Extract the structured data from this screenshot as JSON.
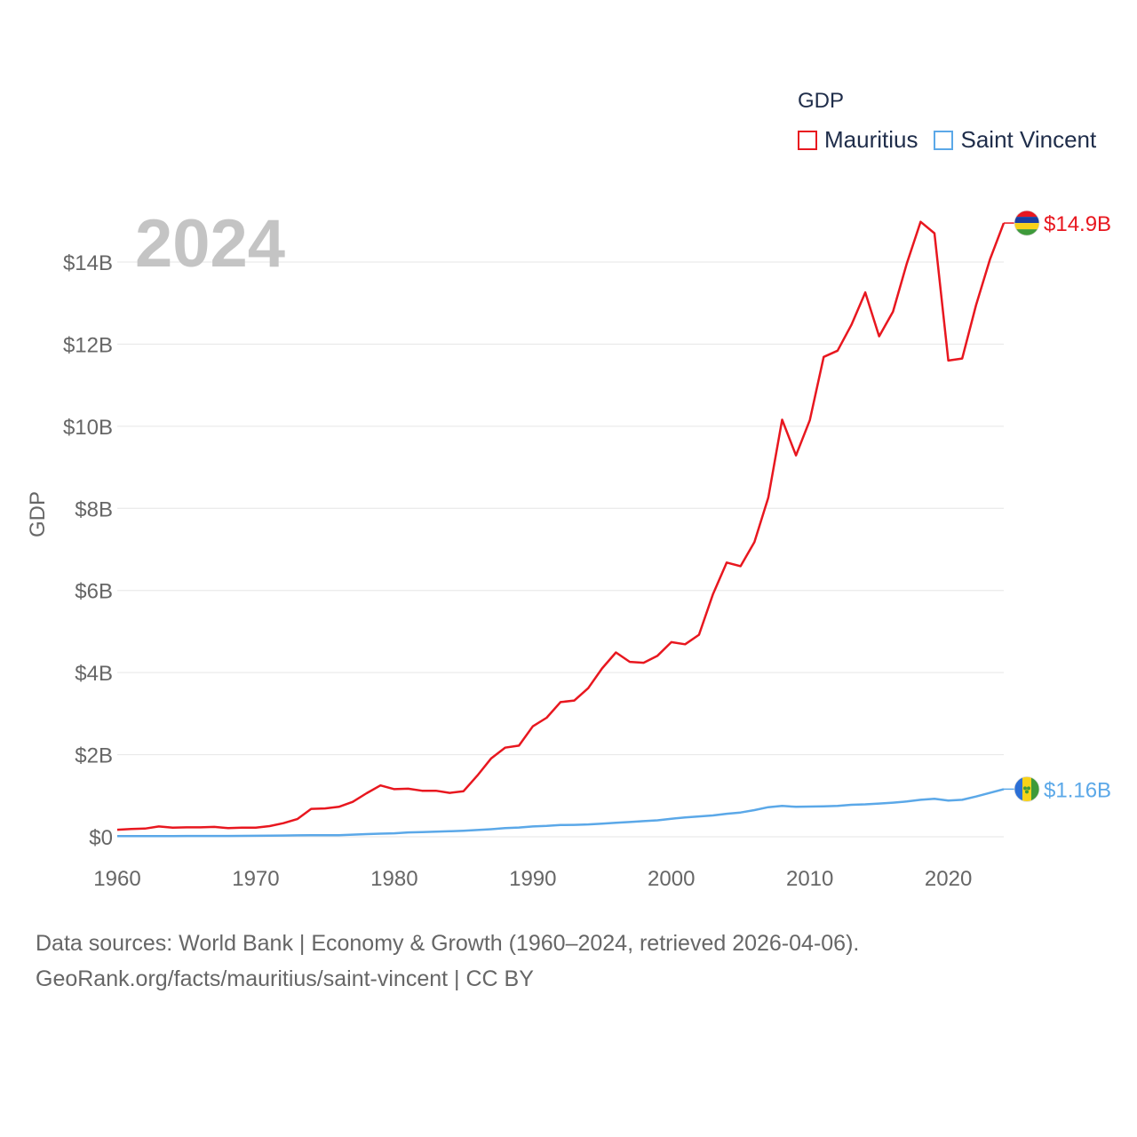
{
  "chart_data": {
    "type": "line",
    "title": "GDP",
    "ylabel": "GDP",
    "xlabel": "",
    "year_label": "2024",
    "xlim": [
      1960,
      2024
    ],
    "ylim": [
      0,
      15500000000
    ],
    "x_ticks": [
      1960,
      1970,
      1980,
      1990,
      2000,
      2010,
      2020
    ],
    "x_tick_labels": [
      "1960",
      "1970",
      "1980",
      "1990",
      "2000",
      "2010",
      "2020"
    ],
    "y_ticks": [
      0,
      2000000000,
      4000000000,
      6000000000,
      8000000000,
      10000000000,
      12000000000,
      14000000000
    ],
    "y_tick_labels": [
      "$0",
      "$2B",
      "$4B",
      "$6B",
      "$8B",
      "$10B",
      "$12B",
      "$14B"
    ],
    "grid": true,
    "legend_position": "top-right",
    "x": [
      1960,
      1961,
      1962,
      1963,
      1964,
      1965,
      1966,
      1967,
      1968,
      1969,
      1970,
      1971,
      1972,
      1973,
      1974,
      1975,
      1976,
      1977,
      1978,
      1979,
      1980,
      1981,
      1982,
      1983,
      1984,
      1985,
      1986,
      1987,
      1988,
      1989,
      1990,
      1991,
      1992,
      1993,
      1994,
      1995,
      1996,
      1997,
      1998,
      1999,
      2000,
      2001,
      2002,
      2003,
      2004,
      2005,
      2006,
      2007,
      2008,
      2009,
      2010,
      2011,
      2012,
      2013,
      2014,
      2015,
      2016,
      2017,
      2018,
      2019,
      2020,
      2021,
      2022,
      2023,
      2024
    ],
    "series": [
      {
        "name": "Mauritius",
        "color": "#e8171f",
        "end_label": "$14.9B",
        "flag": "mauritius-flag",
        "values": [
          170000000,
          190000000,
          200000000,
          250000000,
          220000000,
          230000000,
          230000000,
          240000000,
          210000000,
          220000000,
          220000000,
          260000000,
          330000000,
          430000000,
          680000000,
          690000000,
          730000000,
          850000000,
          1060000000,
          1250000000,
          1160000000,
          1170000000,
          1120000000,
          1120000000,
          1070000000,
          1110000000,
          1490000000,
          1910000000,
          2170000000,
          2220000000,
          2690000000,
          2900000000,
          3280000000,
          3320000000,
          3620000000,
          4100000000,
          4490000000,
          4260000000,
          4240000000,
          4410000000,
          4740000000,
          4690000000,
          4920000000,
          5900000000,
          6680000000,
          6590000000,
          7180000000,
          8260000000,
          10160000000,
          9290000000,
          10150000000,
          11690000000,
          11840000000,
          12470000000,
          13260000000,
          12190000000,
          12790000000,
          13960000000,
          14980000000,
          14700000000,
          11600000000,
          11650000000,
          12950000000,
          14060000000,
          14950000000
        ]
      },
      {
        "name": "Saint Vincent",
        "color": "#5ba8e8",
        "end_label": "$1.16B",
        "flag": "saint-vincent-flag",
        "values": [
          15000000,
          15000000,
          16000000,
          17000000,
          18000000,
          19000000,
          19000000,
          20000000,
          20000000,
          21000000,
          23000000,
          26000000,
          31000000,
          35000000,
          39000000,
          38000000,
          40000000,
          53000000,
          65000000,
          75000000,
          85000000,
          105000000,
          115000000,
          125000000,
          135000000,
          147000000,
          165000000,
          185000000,
          210000000,
          225000000,
          250000000,
          265000000,
          285000000,
          290000000,
          300000000,
          320000000,
          340000000,
          360000000,
          380000000,
          400000000,
          440000000,
          470000000,
          495000000,
          520000000,
          560000000,
          590000000,
          650000000,
          720000000,
          750000000,
          730000000,
          735000000,
          740000000,
          750000000,
          780000000,
          790000000,
          810000000,
          830000000,
          860000000,
          900000000,
          925000000,
          880000000,
          900000000,
          980000000,
          1070000000,
          1160000000
        ]
      }
    ]
  },
  "legend": {
    "title": "GDP",
    "items": [
      {
        "label": "Mauritius",
        "color": "#e8171f"
      },
      {
        "label": "Saint Vincent",
        "color": "#5ba8e8"
      }
    ]
  },
  "footer": {
    "line1": "Data sources: World Bank | Economy & Growth (1960–2024, retrieved 2026-04-06).",
    "line2": "GeoRank.org/facts/mauritius/saint-vincent | CC BY"
  }
}
